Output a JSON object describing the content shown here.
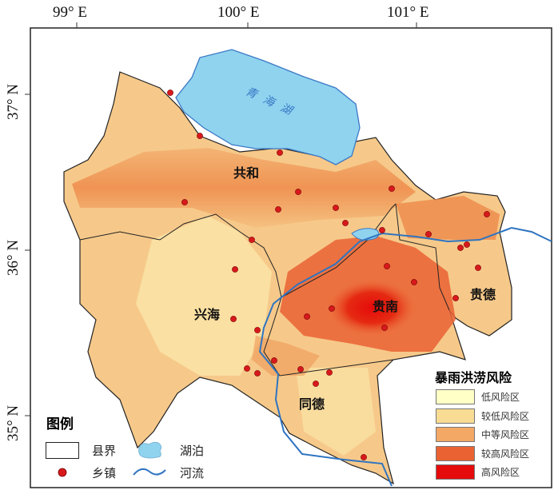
{
  "axes": {
    "longitude_ticks": [
      "99° E",
      "100° E",
      "101° E"
    ],
    "latitude_ticks": [
      "37° N",
      "36° N",
      "35° N"
    ]
  },
  "map_labels": {
    "lake": "青海湖",
    "counties": [
      "共和",
      "兴海",
      "贵南",
      "贵德",
      "同德"
    ]
  },
  "legend": {
    "title": "图例",
    "items": [
      {
        "label": "县界",
        "symbol": "county-boundary"
      },
      {
        "label": "湖泊",
        "symbol": "lake",
        "color": "#8fd3ef"
      },
      {
        "label": "乡镇",
        "symbol": "town-dot",
        "color": "#d7191c"
      },
      {
        "label": "河流",
        "symbol": "river",
        "color": "#2f74c0"
      }
    ]
  },
  "risk_legend": {
    "title": "暴雨洪涝风险",
    "classes": [
      {
        "label": "低风险区",
        "color": "#ffffc6"
      },
      {
        "label": "较低风险区",
        "color": "#f9dc93"
      },
      {
        "label": "中等风险区",
        "color": "#f3a866"
      },
      {
        "label": "较高风险区",
        "color": "#ea6232"
      },
      {
        "label": "高风险区",
        "color": "#e50b0b"
      }
    ]
  }
}
